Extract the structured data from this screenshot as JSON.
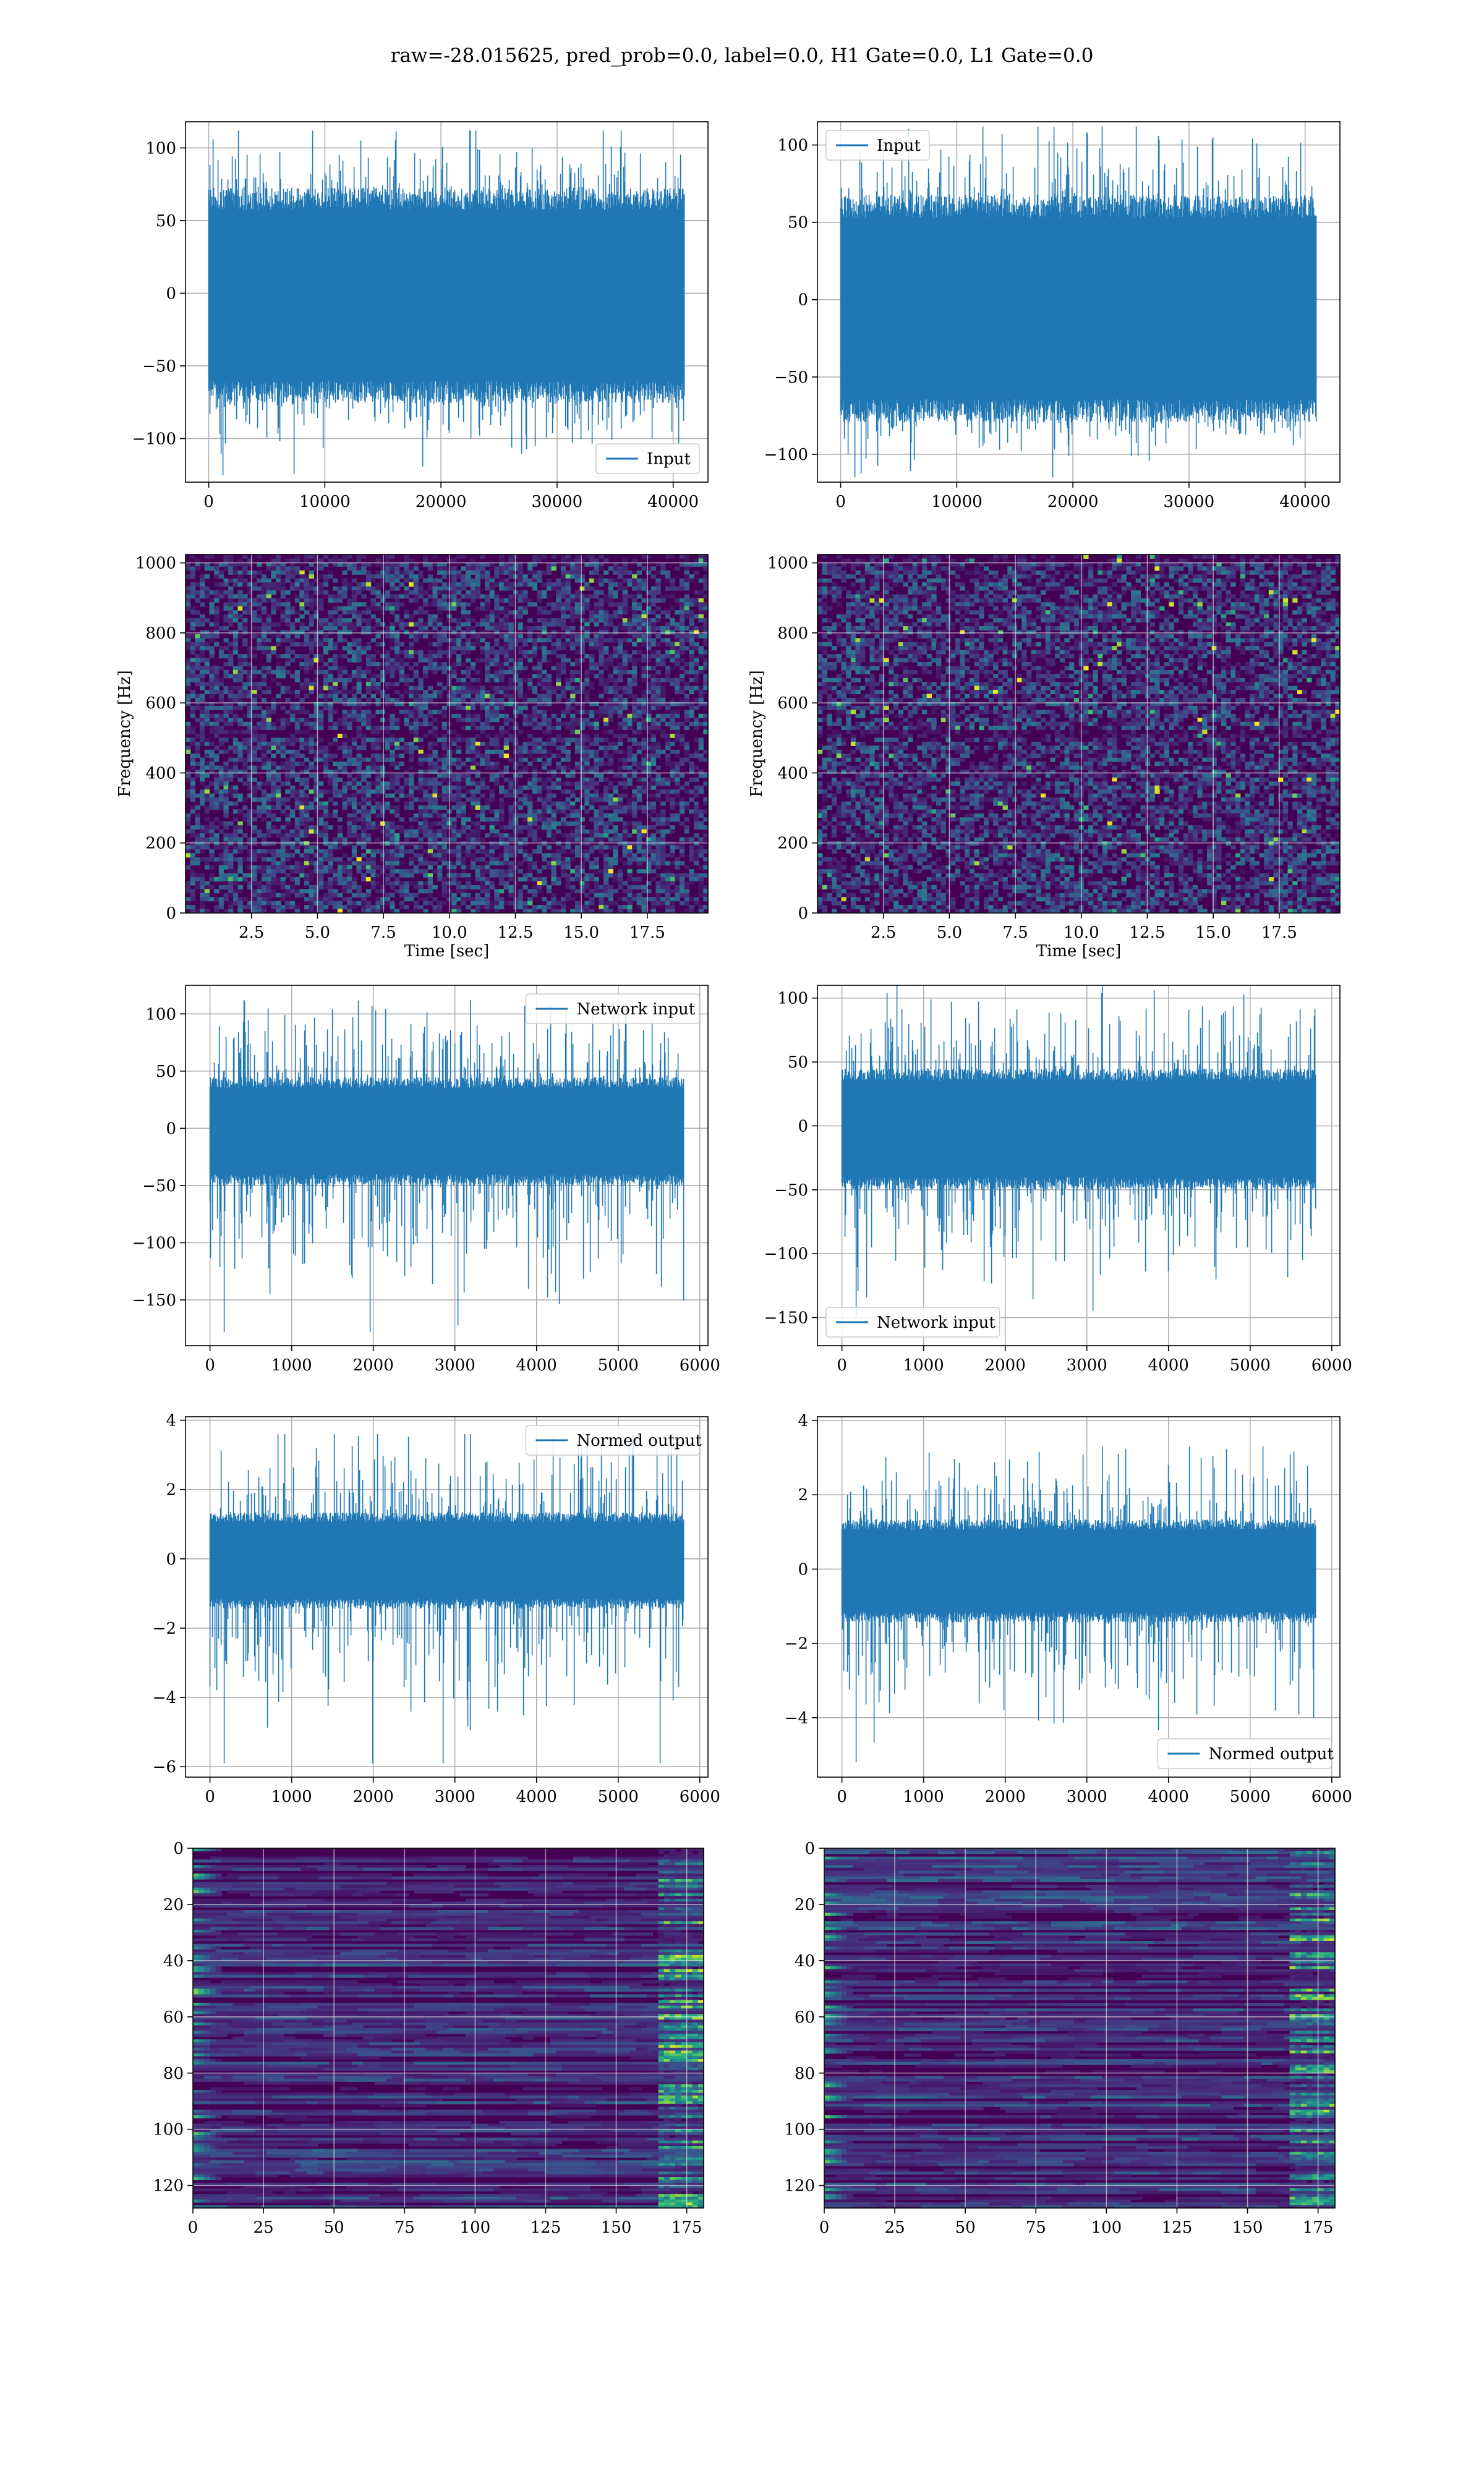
{
  "suptitle": "raw=-28.015625, pred_prob=0.0, label=0.0, H1 Gate=0.0, L1 Gate=0.0",
  "colors": {
    "line": "#1f77b4",
    "grid": "#b0b0b0",
    "axes": "#000000",
    "viridis_dark": "#440154",
    "viridis_mid": "#21908c",
    "viridis_bright": "#fde725"
  },
  "chart_data": [
    {
      "panel": "row1-left",
      "type": "line",
      "xlim": [
        -2000,
        43000
      ],
      "ylim": [
        -130,
        118
      ],
      "xticks": [
        0,
        10000,
        20000,
        30000,
        40000
      ],
      "yticks": [
        -100,
        -50,
        0,
        50,
        100
      ],
      "xlabel": "",
      "ylabel": "",
      "legend": "Input",
      "legend_position": "lower-right",
      "series": [
        {
          "name": "Input",
          "x_range": [
            0,
            40960
          ],
          "n_points": 40960,
          "band_lower": -68,
          "band_upper": 65,
          "peak_min": -125,
          "peak_max": 112
        }
      ]
    },
    {
      "panel": "row1-right",
      "type": "line",
      "xlim": [
        -2000,
        43000
      ],
      "ylim": [
        -118,
        115
      ],
      "xticks": [
        0,
        10000,
        20000,
        30000,
        40000
      ],
      "yticks": [
        -100,
        -50,
        0,
        50,
        100
      ],
      "xlabel": "",
      "ylabel": "",
      "legend": "Input",
      "legend_position": "upper-left",
      "series": [
        {
          "name": "Input",
          "x_range": [
            0,
            40960
          ],
          "n_points": 40960,
          "band_lower": -72,
          "band_upper": 60,
          "peak_min": -115,
          "peak_max": 112
        }
      ]
    },
    {
      "panel": "row2-left",
      "type": "heatmap",
      "xlim": [
        0,
        19.8
      ],
      "ylim": [
        0,
        1024
      ],
      "xticks": [
        2.5,
        5.0,
        7.5,
        10.0,
        12.5,
        15.0,
        17.5
      ],
      "yticks": [
        0,
        200,
        400,
        600,
        800,
        1000
      ],
      "xlabel": "Time [sec]",
      "ylabel": "Frequency [Hz]",
      "colormap": "viridis"
    },
    {
      "panel": "row2-right",
      "type": "heatmap",
      "xlim": [
        0,
        19.8
      ],
      "ylim": [
        0,
        1024
      ],
      "xticks": [
        2.5,
        5.0,
        7.5,
        10.0,
        12.5,
        15.0,
        17.5
      ],
      "yticks": [
        0,
        200,
        400,
        600,
        800,
        1000
      ],
      "xlabel": "Time [sec]",
      "ylabel": "Frequency [Hz]",
      "colormap": "viridis"
    },
    {
      "panel": "row3-left",
      "type": "line",
      "xlim": [
        -300,
        6100
      ],
      "ylim": [
        -190,
        125
      ],
      "xticks": [
        0,
        1000,
        2000,
        3000,
        4000,
        5000,
        6000
      ],
      "yticks": [
        -150,
        -100,
        -50,
        0,
        50,
        100
      ],
      "xlabel": "",
      "ylabel": "",
      "legend": "Network input",
      "legend_position": "upper-right",
      "series": [
        {
          "name": "Network input",
          "x_range": [
            0,
            5800
          ],
          "n_points": 5800,
          "band_lower": -45,
          "band_upper": 40,
          "peak_min": -178,
          "peak_max": 112
        }
      ]
    },
    {
      "panel": "row3-right",
      "type": "line",
      "xlim": [
        -300,
        6100
      ],
      "ylim": [
        -172,
        110
      ],
      "xticks": [
        0,
        1000,
        2000,
        3000,
        4000,
        5000,
        6000
      ],
      "yticks": [
        -150,
        -100,
        -50,
        0,
        50,
        100
      ],
      "xlabel": "",
      "ylabel": "",
      "legend": "Network input",
      "legend_position": "lower-left",
      "series": [
        {
          "name": "Network input",
          "x_range": [
            0,
            5800
          ],
          "n_points": 5800,
          "band_lower": -45,
          "band_upper": 40,
          "peak_min": -150,
          "peak_max": 110
        }
      ]
    },
    {
      "panel": "row4-left",
      "type": "line",
      "xlim": [
        -300,
        6100
      ],
      "ylim": [
        -6.3,
        4.1
      ],
      "xticks": [
        0,
        1000,
        2000,
        3000,
        4000,
        5000,
        6000
      ],
      "yticks": [
        -6,
        -4,
        -2,
        0,
        2,
        4
      ],
      "xlabel": "",
      "ylabel": "",
      "legend": "Normed output",
      "legend_position": "upper-right",
      "series": [
        {
          "name": "Normed output",
          "x_range": [
            0,
            5800
          ],
          "n_points": 5800,
          "band_lower": -1.3,
          "band_upper": 1.2,
          "peak_min": -5.9,
          "peak_max": 3.6
        }
      ]
    },
    {
      "panel": "row4-right",
      "type": "line",
      "xlim": [
        -300,
        6100
      ],
      "ylim": [
        -5.6,
        4.1
      ],
      "xticks": [
        0,
        1000,
        2000,
        3000,
        4000,
        5000,
        6000
      ],
      "yticks": [
        -4,
        -2,
        0,
        2,
        4
      ],
      "xlabel": "",
      "ylabel": "",
      "legend": "Normed output",
      "legend_position": "lower-right",
      "series": [
        {
          "name": "Normed output",
          "x_range": [
            0,
            5800
          ],
          "n_points": 5800,
          "band_lower": -1.3,
          "band_upper": 1.2,
          "peak_min": -5.2,
          "peak_max": 3.3
        }
      ]
    },
    {
      "panel": "row5-left",
      "type": "heatmap",
      "xlim": [
        0,
        181
      ],
      "ylim": [
        128,
        0
      ],
      "xticks": [
        0,
        25,
        50,
        75,
        100,
        125,
        150,
        175
      ],
      "yticks": [
        0,
        20,
        40,
        60,
        80,
        100,
        120
      ],
      "xlabel": "",
      "ylabel": "",
      "colormap": "viridis",
      "n_rows": 128,
      "n_cols": 181
    },
    {
      "panel": "row5-right",
      "type": "heatmap",
      "xlim": [
        0,
        181
      ],
      "ylim": [
        128,
        0
      ],
      "xticks": [
        0,
        25,
        50,
        75,
        100,
        125,
        150,
        175
      ],
      "yticks": [
        0,
        20,
        40,
        60,
        80,
        100,
        120
      ],
      "xlabel": "",
      "ylabel": "",
      "colormap": "viridis",
      "n_rows": 128,
      "n_cols": 181
    }
  ]
}
